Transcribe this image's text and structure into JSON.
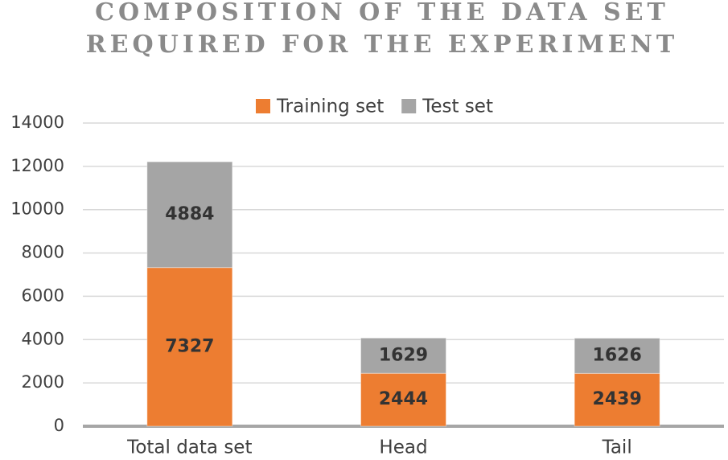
{
  "chart_data": {
    "type": "bar",
    "stacked": true,
    "title": [
      "COMPOSITION OF THE DATA SET",
      "REQUIRED FOR THE EXPERIMENT"
    ],
    "categories": [
      "Total data set",
      "Head",
      "Tail"
    ],
    "series": [
      {
        "name": "Training set",
        "color": "#ed7d31",
        "values": [
          7327,
          2444,
          2439
        ]
      },
      {
        "name": "Test set",
        "color": "#a5a5a5",
        "values": [
          4884,
          1629,
          1626
        ]
      }
    ],
    "ylim": [
      0,
      14000
    ],
    "yticks": [
      0,
      2000,
      4000,
      6000,
      8000,
      10000,
      12000,
      14000
    ],
    "grid": true,
    "legend": "top",
    "data_labels": true
  }
}
